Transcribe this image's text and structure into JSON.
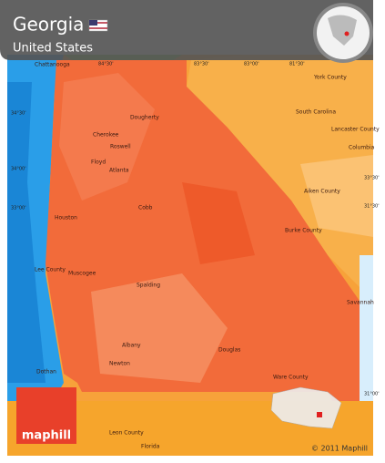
{
  "header": {
    "title": "Georgia",
    "subtitle": "United States"
  },
  "places": [
    {
      "label": "Chattanooga"
    },
    {
      "label": "York County"
    },
    {
      "label": "Dougherty"
    },
    {
      "label": "Cherokee"
    },
    {
      "label": "Roswell"
    },
    {
      "label": "Floyd"
    },
    {
      "label": "Atlanta"
    },
    {
      "label": "South Carolina"
    },
    {
      "label": "Lancaster County"
    },
    {
      "label": "Columbia"
    },
    {
      "label": "Cobb"
    },
    {
      "label": "Aiken County"
    },
    {
      "label": "Houston"
    },
    {
      "label": "Burke County"
    },
    {
      "label": "Lee County"
    },
    {
      "label": "Muscogee"
    },
    {
      "label": "Spalding"
    },
    {
      "label": "Savannah"
    },
    {
      "label": "Albany"
    },
    {
      "label": "Douglas"
    },
    {
      "label": "Newton"
    },
    {
      "label": "Ware County"
    },
    {
      "label": "Dothan"
    },
    {
      "label": "Leon County"
    },
    {
      "label": "Florida"
    }
  ],
  "grid_labels": [
    {
      "label": "84°30'"
    },
    {
      "label": "83°30'"
    },
    {
      "label": "83°00'"
    },
    {
      "label": "81°30'"
    },
    {
      "label": "34°30'"
    },
    {
      "label": "34°00'"
    },
    {
      "label": "33°30'"
    },
    {
      "label": "33°00'"
    },
    {
      "label": "31°30'"
    },
    {
      "label": "31°00'"
    }
  ],
  "branding": {
    "logo": "maphill",
    "copyright": "© 2011 Maphill"
  }
}
